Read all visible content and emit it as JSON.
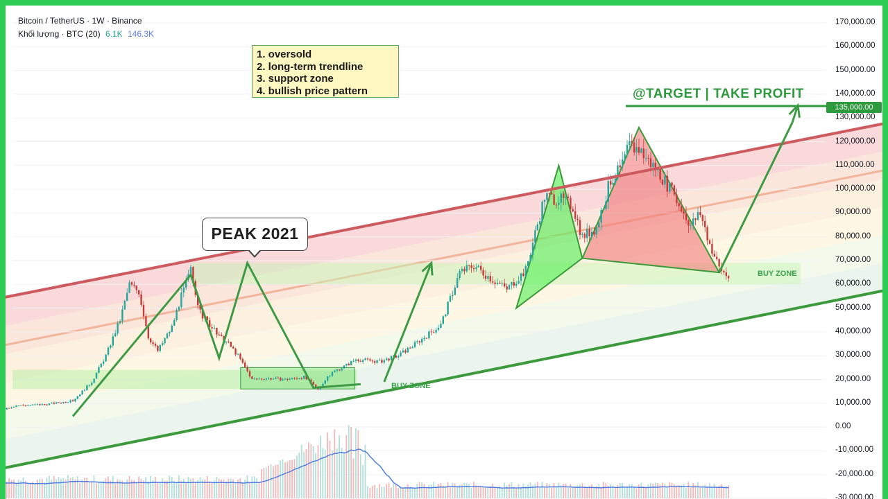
{
  "header": {
    "symbol_line": "Bitcoin / TetherUS · 1W · Binance",
    "volume_label": "Khối lượng · BTC (20)",
    "volume_value_1": "6.1K",
    "volume_value_2": "146.3K"
  },
  "notes": [
    "1. oversold",
    "2. long-term trendline",
    "3. support zone",
    "4. bullish price pattern"
  ],
  "peak_label": "PEAK 2021",
  "target_label": "@TARGET | TAKE PROFIT",
  "price_tag": "135,000.00",
  "buy_zone_labels": [
    "BUY ZONE",
    "BUY ZONE"
  ],
  "axis_ticks": [
    "170,000.00",
    "160,000.00",
    "150,000.00",
    "140,000.00",
    "130,000.00",
    "120,000.00",
    "110,000.00",
    "100,000.00",
    "90,000.00",
    "80,000.00",
    "70,000.00",
    "60,000.00",
    "50,000.00",
    "40,000.00",
    "30,000.00",
    "20,000.00",
    "10,000.00",
    "0.00",
    "-10,000.00",
    "-20,000.00",
    "-30,000.00"
  ],
  "colors": {
    "frame": "#2ecc55",
    "resistance_line": "#cc5a5e",
    "support_line": "#3c9a3c",
    "pattern_line": "#3f9a45",
    "candle_up": "#26a69a",
    "candle_down": "#c83a3a",
    "volume_ma": "#4a78e0"
  },
  "chart_data": {
    "type": "candlestick",
    "price_path": [
      [
        -93,
        9000
      ],
      [
        -83,
        10500
      ],
      [
        -72,
        8800
      ],
      [
        -60,
        7500
      ],
      [
        -48,
        9200
      ],
      [
        -36,
        6000
      ],
      [
        -24,
        9000
      ],
      [
        -12,
        9500
      ],
      [
        0,
        11000
      ],
      [
        8,
        19000
      ],
      [
        14,
        30000
      ],
      [
        20,
        45000
      ],
      [
        24,
        60000
      ],
      [
        28,
        57000
      ],
      [
        32,
        38000
      ],
      [
        36,
        32000
      ],
      [
        42,
        42000
      ],
      [
        46,
        55000
      ],
      [
        50,
        66000
      ],
      [
        54,
        48000
      ],
      [
        58,
        43000
      ],
      [
        62,
        38000
      ],
      [
        66,
        35000
      ],
      [
        70,
        30000
      ],
      [
        76,
        20000
      ],
      [
        82,
        20500
      ],
      [
        90,
        20000
      ],
      [
        98,
        21000
      ],
      [
        104,
        16000
      ],
      [
        110,
        23000
      ],
      [
        116,
        26000
      ],
      [
        120,
        28500
      ],
      [
        130,
        27500
      ],
      [
        138,
        30000
      ],
      [
        148,
        37000
      ],
      [
        156,
        43000
      ],
      [
        164,
        65000
      ],
      [
        170,
        68000
      ],
      [
        178,
        62000
      ],
      [
        184,
        58000
      ],
      [
        192,
        66000
      ],
      [
        200,
        97000
      ],
      [
        206,
        96000
      ],
      [
        212,
        93000
      ],
      [
        216,
        80000
      ],
      [
        222,
        84000
      ],
      [
        228,
        104000
      ],
      [
        232,
        108000
      ],
      [
        236,
        118000
      ],
      [
        240,
        117000
      ],
      [
        244,
        112000
      ],
      [
        248,
        108000
      ],
      [
        252,
        102000
      ],
      [
        258,
        92000
      ],
      [
        262,
        85000
      ],
      [
        266,
        90000
      ],
      [
        270,
        77000
      ],
      [
        274,
        67000
      ],
      [
        278,
        63000
      ]
    ],
    "channel": {
      "upper_start": [
        -93,
        42000
      ],
      "upper_end": [
        407,
        140000
      ],
      "lower_start": [
        -93,
        -30000
      ],
      "lower_end": [
        407,
        70000
      ]
    },
    "buy_zones": [
      {
        "x_range": [
          72,
          118
        ],
        "y_range": [
          16000,
          24000
        ]
      },
      {
        "x_range": [
          250,
          350
        ],
        "y_range": [
          60000,
          72000
        ]
      }
    ],
    "target": 135000,
    "ylim": [
      -30000,
      172000
    ]
  }
}
